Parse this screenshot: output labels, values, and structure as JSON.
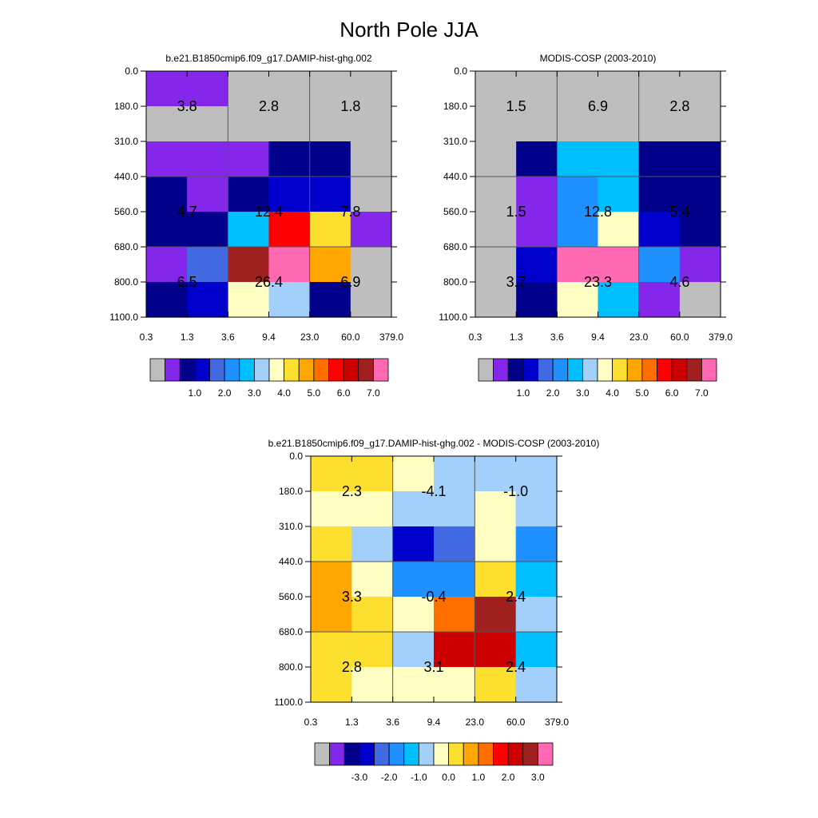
{
  "title": "North Pole JJA",
  "palette": {
    "gray": "#bebebe",
    "violet": "#8427ea",
    "navy": "#00008b",
    "blue": "#0000cd",
    "royal": "#4169e1",
    "dodger": "#1e90ff",
    "deepsky": "#00bfff",
    "lightblue": "#a3d0fb",
    "cream": "#ffffc4",
    "gold": "#fde02f",
    "amber": "#ffa700",
    "orange": "#ff6f00",
    "red": "#ff0000",
    "darkred": "#cc0000",
    "brown": "#a02020",
    "pink": "#ff69b4"
  },
  "colorbar_abs": {
    "colors": [
      "gray",
      "violet",
      "navy",
      "blue",
      "royal",
      "dodger",
      "deepsky",
      "lightblue",
      "cream",
      "gold",
      "amber",
      "orange",
      "red",
      "darkred",
      "brown",
      "pink"
    ],
    "labels": [
      "1.0",
      "2.0",
      "3.0",
      "4.0",
      "5.0",
      "6.0",
      "7.0"
    ]
  },
  "colorbar_diff": {
    "colors": [
      "gray",
      "violet",
      "navy",
      "blue",
      "royal",
      "dodger",
      "deepsky",
      "lightblue",
      "cream",
      "gold",
      "amber",
      "orange",
      "red",
      "darkred",
      "brown",
      "pink"
    ],
    "labels": [
      "-3.0",
      "-2.0",
      "-1.0",
      "0.0",
      "1.0",
      "2.0",
      "3.0"
    ]
  },
  "chart_data": [
    {
      "type": "heatmap",
      "id": "model",
      "title": "b.e21.B1850cmip6.f09_g17.DAMIP-hist-ghg.002",
      "x_ticks": [
        "0.3",
        "1.3",
        "3.6",
        "9.4",
        "23.0",
        "60.0",
        "379.0"
      ],
      "y_ticks": [
        "0.0",
        "180.0",
        "310.0",
        "440.0",
        "560.0",
        "680.0",
        "800.0",
        "1100.0"
      ],
      "cells": [
        [
          "violet",
          "violet",
          "gray",
          "gray",
          "gray",
          "gray"
        ],
        [
          "gray",
          "gray",
          "gray",
          "gray",
          "gray",
          "gray"
        ],
        [
          "violet",
          "violet",
          "violet",
          "navy",
          "navy",
          "gray"
        ],
        [
          "navy",
          "violet",
          "navy",
          "blue",
          "blue",
          "gray"
        ],
        [
          "navy",
          "navy",
          "deepsky",
          "red",
          "gold",
          "violet"
        ],
        [
          "violet",
          "royal",
          "brown",
          "pink",
          "amber",
          "gray"
        ],
        [
          "navy",
          "blue",
          "cream",
          "lightblue",
          "navy",
          "gray"
        ]
      ],
      "labels": [
        {
          "text": "3.8",
          "col": 0,
          "row": 1
        },
        {
          "text": "2.8",
          "col": 1,
          "row": 1
        },
        {
          "text": "1.8",
          "col": 2,
          "row": 1
        },
        {
          "text": "4.7",
          "col": 0,
          "row": 4
        },
        {
          "text": "12.4",
          "col": 1,
          "row": 4
        },
        {
          "text": "7.8",
          "col": 2,
          "row": 4
        },
        {
          "text": "6.5",
          "col": 0,
          "row": 6
        },
        {
          "text": "26.4",
          "col": 1,
          "row": 6
        },
        {
          "text": "6.9",
          "col": 2,
          "row": 6
        }
      ]
    },
    {
      "type": "heatmap",
      "id": "obs",
      "title": "MODIS-COSP (2003-2010)",
      "x_ticks": [
        "0.3",
        "1.3",
        "3.6",
        "9.4",
        "23.0",
        "60.0",
        "379.0"
      ],
      "y_ticks": [
        "0.0",
        "180.0",
        "310.0",
        "440.0",
        "560.0",
        "680.0",
        "800.0",
        "1100.0"
      ],
      "cells": [
        [
          "gray",
          "gray",
          "gray",
          "gray",
          "gray",
          "gray"
        ],
        [
          "gray",
          "gray",
          "gray",
          "gray",
          "gray",
          "gray"
        ],
        [
          "gray",
          "navy",
          "deepsky",
          "deepsky",
          "navy",
          "navy"
        ],
        [
          "gray",
          "violet",
          "dodger",
          "deepsky",
          "navy",
          "navy"
        ],
        [
          "gray",
          "violet",
          "dodger",
          "cream",
          "blue",
          "navy"
        ],
        [
          "gray",
          "blue",
          "pink",
          "pink",
          "dodger",
          "violet"
        ],
        [
          "gray",
          "navy",
          "cream",
          "deepsky",
          "violet",
          "gray"
        ]
      ],
      "labels": [
        {
          "text": "1.5",
          "col": 0,
          "row": 1
        },
        {
          "text": "6.9",
          "col": 1,
          "row": 1
        },
        {
          "text": "2.8",
          "col": 2,
          "row": 1
        },
        {
          "text": "1.5",
          "col": 0,
          "row": 4
        },
        {
          "text": "12.8",
          "col": 1,
          "row": 4
        },
        {
          "text": "5.4",
          "col": 2,
          "row": 4
        },
        {
          "text": "3.7",
          "col": 0,
          "row": 6
        },
        {
          "text": "23.3",
          "col": 1,
          "row": 6
        },
        {
          "text": "4.6",
          "col": 2,
          "row": 6
        }
      ]
    },
    {
      "type": "heatmap",
      "id": "diff",
      "title": "b.e21.B1850cmip6.f09_g17.DAMIP-hist-ghg.002 - MODIS-COSP (2003-2010)",
      "x_ticks": [
        "0.3",
        "1.3",
        "3.6",
        "9.4",
        "23.0",
        "60.0",
        "379.0"
      ],
      "y_ticks": [
        "0.0",
        "180.0",
        "310.0",
        "440.0",
        "560.0",
        "680.0",
        "800.0",
        "1100.0"
      ],
      "cells": [
        [
          "gold",
          "gold",
          "cream",
          "lightblue",
          "lightblue",
          "lightblue"
        ],
        [
          "cream",
          "cream",
          "lightblue",
          "lightblue",
          "cream",
          "lightblue"
        ],
        [
          "gold",
          "lightblue",
          "blue",
          "royal",
          "cream",
          "dodger"
        ],
        [
          "amber",
          "cream",
          "dodger",
          "dodger",
          "gold",
          "deepsky"
        ],
        [
          "amber",
          "gold",
          "cream",
          "orange",
          "brown",
          "lightblue"
        ],
        [
          "gold",
          "gold",
          "lightblue",
          "darkred",
          "darkred",
          "deepsky"
        ],
        [
          "gold",
          "cream",
          "cream",
          "cream",
          "gold",
          "lightblue"
        ]
      ],
      "labels": [
        {
          "text": "2.3",
          "col": 0,
          "row": 1
        },
        {
          "text": "-4.1",
          "col": 1,
          "row": 1
        },
        {
          "text": "-1.0",
          "col": 2,
          "row": 1
        },
        {
          "text": "3.3",
          "col": 0,
          "row": 4
        },
        {
          "text": "-0.4",
          "col": 1,
          "row": 4
        },
        {
          "text": "2.4",
          "col": 2,
          "row": 4
        },
        {
          "text": "2.8",
          "col": 0,
          "row": 6
        },
        {
          "text": "3.1",
          "col": 1,
          "row": 6
        },
        {
          "text": "2.4",
          "col": 2,
          "row": 6
        }
      ]
    }
  ]
}
